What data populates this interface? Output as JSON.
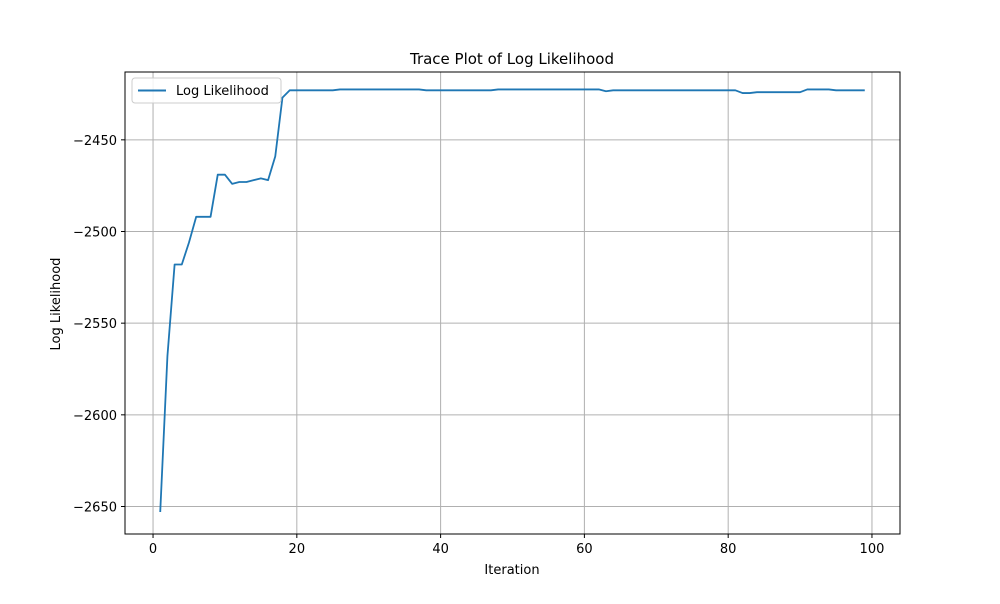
{
  "chart_data": {
    "type": "line",
    "title": "Trace Plot of Log Likelihood",
    "xlabel": "Iteration",
    "ylabel": "Log Likelihood",
    "xlim": [
      -3.9,
      103.9
    ],
    "ylim": [
      -2665,
      -2413
    ],
    "x_ticks": [
      0,
      20,
      40,
      60,
      80,
      100
    ],
    "x_tick_labels": [
      "0",
      "20",
      "40",
      "60",
      "80",
      "100"
    ],
    "y_ticks": [
      -2450,
      -2500,
      -2550,
      -2600,
      -2650
    ],
    "y_tick_labels": [
      "−2450",
      "−2500",
      "−2550",
      "−2600",
      "−2650"
    ],
    "grid": true,
    "legend_position": "top-left",
    "series": [
      {
        "name": "Log Likelihood",
        "color": "#1f77b4",
        "x": [
          1,
          2,
          3,
          4,
          5,
          6,
          7,
          8,
          9,
          10,
          11,
          12,
          13,
          14,
          15,
          16,
          17,
          18,
          19,
          20,
          21,
          22,
          23,
          24,
          25,
          26,
          27,
          28,
          29,
          30,
          31,
          32,
          33,
          34,
          35,
          36,
          37,
          38,
          39,
          40,
          41,
          42,
          43,
          44,
          45,
          46,
          47,
          48,
          49,
          50,
          51,
          52,
          53,
          54,
          55,
          56,
          57,
          58,
          59,
          60,
          61,
          62,
          63,
          64,
          65,
          66,
          67,
          68,
          69,
          70,
          71,
          72,
          73,
          74,
          75,
          76,
          77,
          78,
          79,
          80,
          81,
          82,
          83,
          84,
          85,
          86,
          87,
          88,
          89,
          90,
          91,
          92,
          93,
          94,
          95,
          96,
          97,
          98,
          99
        ],
        "values": [
          -2653,
          -2568,
          -2518,
          -2518,
          -2506,
          -2492,
          -2492,
          -2492,
          -2469,
          -2469,
          -2474,
          -2473,
          -2473,
          -2472,
          -2471,
          -2472,
          -2459,
          -2427,
          -2423,
          -2423,
          -2423,
          -2423,
          -2423,
          -2423,
          -2423,
          -2422.5,
          -2422.5,
          -2422.5,
          -2422.5,
          -2422.5,
          -2422.5,
          -2422.5,
          -2422.5,
          -2422.5,
          -2422.5,
          -2422.5,
          -2422.5,
          -2423,
          -2423,
          -2423,
          -2423,
          -2423,
          -2423,
          -2423,
          -2423,
          -2423,
          -2423,
          -2422.5,
          -2422.5,
          -2422.5,
          -2422.5,
          -2422.5,
          -2422.5,
          -2422.5,
          -2422.5,
          -2422.5,
          -2422.5,
          -2422.5,
          -2422.5,
          -2422.5,
          -2422.5,
          -2422.5,
          -2423.5,
          -2423,
          -2423,
          -2423,
          -2423,
          -2423,
          -2423,
          -2423,
          -2423,
          -2423,
          -2423,
          -2423,
          -2423,
          -2423,
          -2423,
          -2423,
          -2423,
          -2423,
          -2423,
          -2424.5,
          -2424.5,
          -2424,
          -2424,
          -2424,
          -2424,
          -2424,
          -2424,
          -2424,
          -2422.5,
          -2422.5,
          -2422.5,
          -2422.5,
          -2423,
          -2423,
          -2423,
          -2423,
          -2423
        ]
      }
    ]
  }
}
